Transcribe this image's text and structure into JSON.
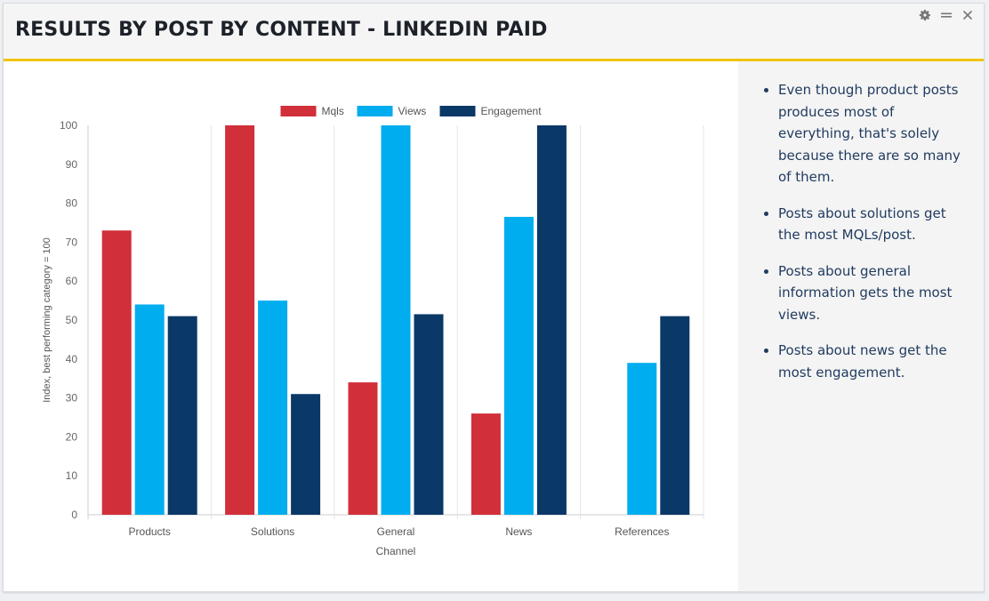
{
  "header": {
    "title": "RESULTS BY POST BY CONTENT - LINKEDIN PAID"
  },
  "controls": {
    "settings_icon": "gear-icon",
    "menu_icon": "menu-icon",
    "close_icon": "close-icon"
  },
  "notes": [
    "Even though product posts produces most of everything, that's solely because there are so many of them.",
    "Posts about solutions get the most MQLs/post.",
    "Posts about general information gets the most views.",
    "Posts about news get the most engagement."
  ],
  "chart_data": {
    "type": "bar",
    "title": "",
    "xlabel": "Channel",
    "ylabel": "Index, best performing category = 100",
    "categories": [
      "Products",
      "Solutions",
      "General",
      "News",
      "References"
    ],
    "ylim": [
      0,
      100
    ],
    "yticks": [
      0,
      10,
      20,
      30,
      40,
      50,
      60,
      70,
      80,
      90,
      100
    ],
    "grid": "vertical",
    "legend_position": "top",
    "series": [
      {
        "name": "Mqls",
        "color": "#d12f3a",
        "values": [
          73,
          100,
          34,
          26,
          null
        ]
      },
      {
        "name": "Views",
        "color": "#00adef",
        "values": [
          54,
          55,
          100,
          76.5,
          39
        ]
      },
      {
        "name": "Engagement",
        "color": "#0a3867",
        "values": [
          51,
          31,
          51.5,
          100,
          51
        ]
      }
    ]
  }
}
